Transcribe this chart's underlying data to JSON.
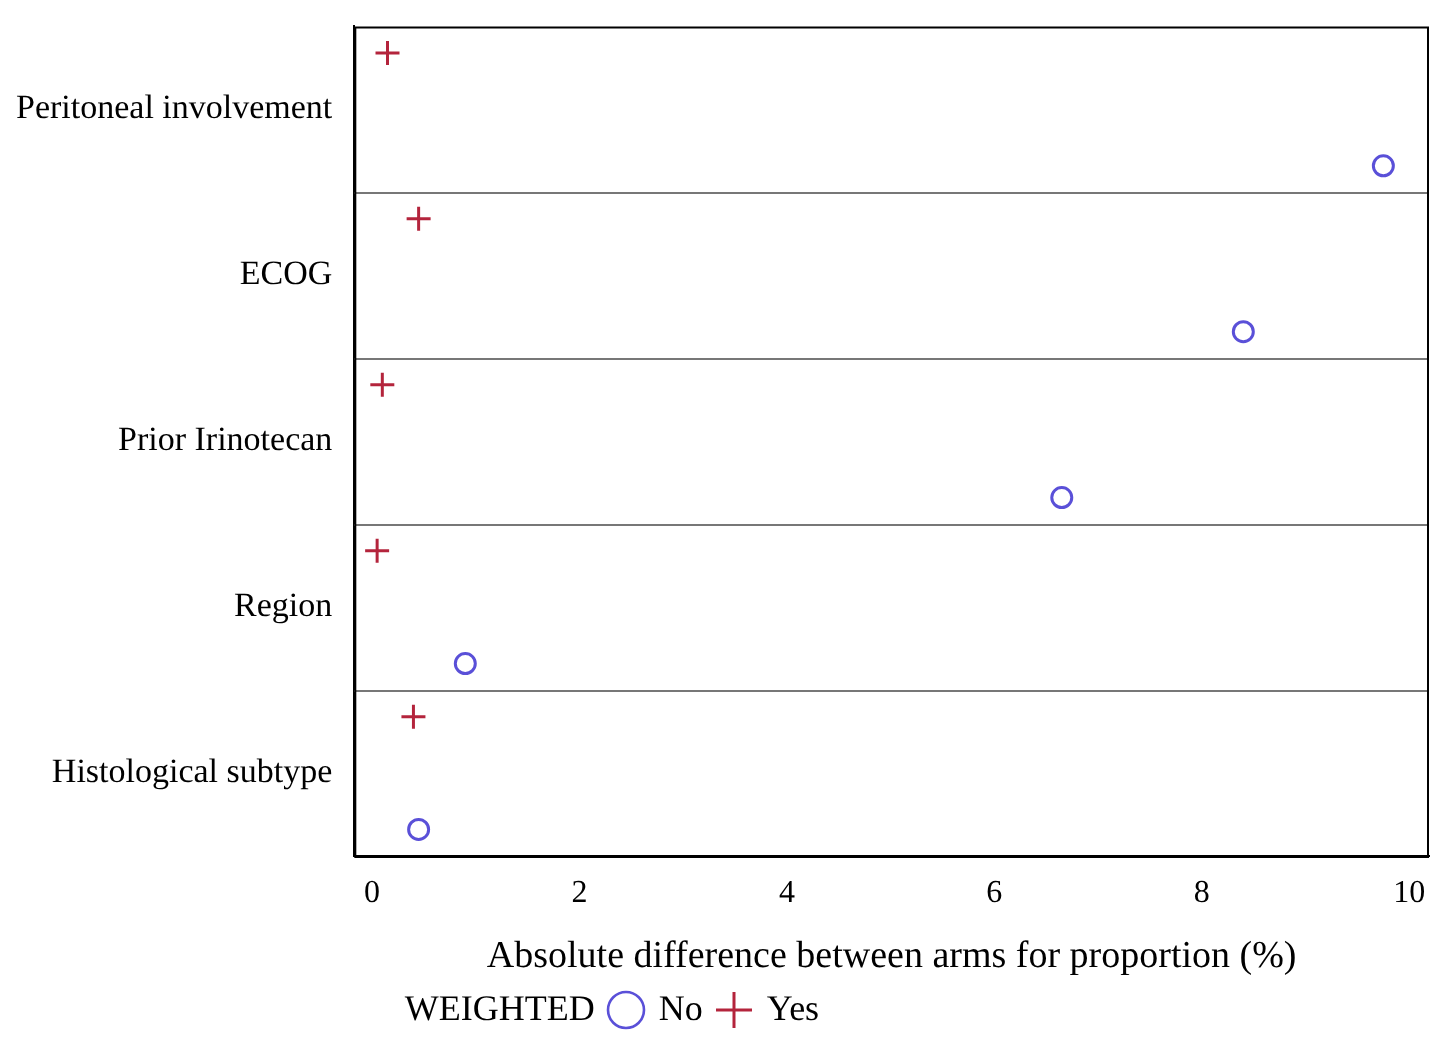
{
  "chart_data": {
    "type": "scatter",
    "orientation": "horizontal",
    "xlabel": "Absolute difference between arms for proportion (%)",
    "categories": [
      "Peritoneal involvement",
      "ECOG",
      "Prior Irinotecan",
      "Region",
      "Histological subtype"
    ],
    "series": [
      {
        "name": "Yes",
        "color": "#b4243c",
        "marker": "cross",
        "values": [
          0.15,
          0.45,
          0.1,
          0.05,
          0.4
        ]
      },
      {
        "name": "No",
        "color": "#5a50d8",
        "marker": "circle",
        "values": [
          9.75,
          8.4,
          6.65,
          0.9,
          0.45
        ]
      }
    ],
    "legend_title": "WEIGHTED",
    "legend": "bottom",
    "xlim": [
      -0.17,
      10.19
    ],
    "xticks": [
      0,
      2,
      4,
      6,
      8,
      10
    ],
    "grid": false
  }
}
